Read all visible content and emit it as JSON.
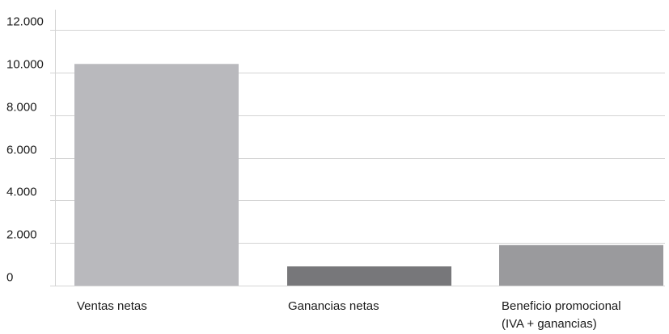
{
  "chart_data": {
    "type": "bar",
    "categories": [
      [
        "Ventas netas"
      ],
      [
        "Ganancias netas"
      ],
      [
        "Beneficio promocional",
        "(IVA + ganancias)"
      ]
    ],
    "values": [
      10400,
      900,
      1900
    ],
    "bar_colors": [
      "#b9b9bd",
      "#77777a",
      "#9a9a9d"
    ],
    "yticks": [
      "12.000",
      "10.000",
      "8.000",
      "6.000",
      "4.000",
      "2.000",
      "0"
    ],
    "ytick_values": [
      12000,
      10000,
      8000,
      6000,
      4000,
      2000,
      0
    ],
    "ylim": [
      0,
      12000
    ],
    "grid": true,
    "legend": "none",
    "title": "",
    "xlabel": "",
    "ylabel": ""
  }
}
